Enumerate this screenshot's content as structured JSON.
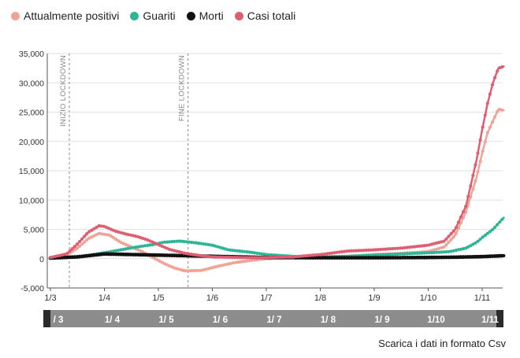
{
  "legend": [
    {
      "label": "Attualmente positivi",
      "color": "#eea497"
    },
    {
      "label": "Guariti",
      "color": "#2fb596"
    },
    {
      "label": "Morti",
      "color": "#111111"
    },
    {
      "label": "Casi totali",
      "color": "#de5f71"
    }
  ],
  "download_label": "Scarica i dati in formato Csv",
  "chart_data": {
    "type": "line",
    "ylim": [
      -5000,
      35000
    ],
    "yticks": [
      -5000,
      0,
      5000,
      10000,
      15000,
      20000,
      25000,
      30000,
      35000
    ],
    "ytick_labels": [
      "-5,000",
      "0",
      "5,000",
      "10,000",
      "15,000",
      "20,000",
      "25,000",
      "30,000",
      "35,000"
    ],
    "xlim": [
      0,
      8.5
    ],
    "xticks": [
      0,
      1,
      2,
      3,
      4,
      5,
      6,
      7,
      8
    ],
    "xtick_labels": [
      "1/3",
      "1/4",
      "1/5",
      "1/6",
      "1/7",
      "1/8",
      "1/9",
      "1/10",
      "1/11"
    ],
    "nav_labels": [
      "/ 3",
      "1/ 4",
      "1/ 5",
      "1/ 6",
      "1/ 7",
      "1/ 8",
      "1/ 9",
      "1/10",
      "1/11"
    ],
    "annotations": [
      {
        "x": 0.35,
        "text": "INIZIO LOCKDOWN"
      },
      {
        "x": 2.55,
        "text": "FINE LOCKDOWN"
      }
    ],
    "series": [
      {
        "name": "Attualmente positivi",
        "color": "#eea497",
        "x": [
          0,
          0.3,
          0.5,
          0.7,
          0.9,
          1.1,
          1.3,
          1.5,
          1.7,
          1.9,
          2.1,
          2.3,
          2.5,
          2.8,
          3.1,
          3.4,
          3.7,
          4.0,
          4.5,
          5.0,
          5.5,
          6.0,
          6.5,
          7.0,
          7.3,
          7.5,
          7.7,
          7.9,
          8.0,
          8.1,
          8.2,
          8.3,
          8.4
        ],
        "y": [
          200,
          600,
          1800,
          3400,
          4300,
          4000,
          2800,
          2000,
          1200,
          200,
          -800,
          -1600,
          -2100,
          -2000,
          -1300,
          -700,
          -300,
          0,
          200,
          300,
          400,
          700,
          900,
          1200,
          2000,
          4000,
          8000,
          14000,
          18000,
          21500,
          23500,
          25500,
          25300
        ]
      },
      {
        "name": "Guariti",
        "color": "#2fb596",
        "x": [
          0,
          0.5,
          0.8,
          1.0,
          1.3,
          1.6,
          1.9,
          2.1,
          2.4,
          2.7,
          3.0,
          3.3,
          3.7,
          4.0,
          4.5,
          5.0,
          5.5,
          6.0,
          6.5,
          7.0,
          7.4,
          7.7,
          7.9,
          8.0,
          8.2,
          8.4
        ],
        "y": [
          100,
          300,
          700,
          1000,
          1500,
          2000,
          2400,
          2800,
          3000,
          2700,
          2300,
          1500,
          1100,
          700,
          400,
          300,
          400,
          600,
          800,
          1000,
          1200,
          1800,
          2800,
          3600,
          5000,
          7000
        ]
      },
      {
        "name": "Morti",
        "color": "#111111",
        "x": [
          0,
          0.5,
          1.0,
          1.5,
          2.0,
          2.5,
          3.0,
          3.5,
          4.0,
          5.0,
          6.0,
          7.0,
          7.5,
          8.0,
          8.4
        ],
        "y": [
          100,
          300,
          800,
          700,
          600,
          500,
          400,
          300,
          200,
          150,
          150,
          200,
          250,
          350,
          500
        ]
      },
      {
        "name": "Casi totali",
        "color": "#de5f71",
        "x": [
          0,
          0.3,
          0.5,
          0.7,
          0.9,
          1.0,
          1.2,
          1.4,
          1.6,
          1.8,
          2.0,
          2.2,
          2.5,
          2.8,
          3.0,
          3.5,
          4.0,
          4.5,
          5.0,
          5.5,
          6.0,
          6.5,
          7.0,
          7.3,
          7.5,
          7.7,
          7.9,
          8.0,
          8.1,
          8.2,
          8.3,
          8.4
        ],
        "y": [
          200,
          800,
          2500,
          4500,
          5600,
          5500,
          4700,
          4200,
          3800,
          3200,
          2400,
          1600,
          900,
          500,
          300,
          200,
          200,
          300,
          700,
          1300,
          1500,
          1800,
          2300,
          3000,
          5000,
          9000,
          17000,
          22000,
          26500,
          30000,
          32500,
          32800
        ]
      }
    ]
  }
}
